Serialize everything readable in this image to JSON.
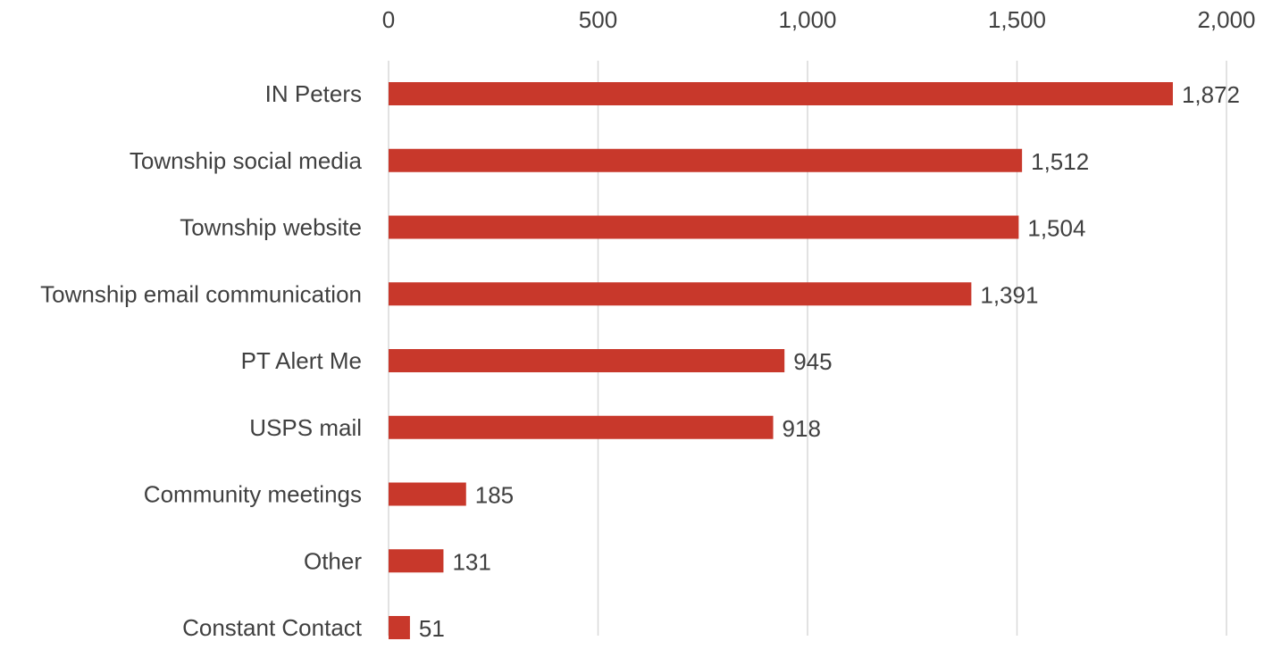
{
  "chart_data": {
    "type": "bar",
    "orientation": "horizontal",
    "categories": [
      "IN Peters",
      "Township social media",
      "Township website",
      "Township email communication",
      "PT Alert Me",
      "USPS mail",
      "Community meetings",
      "Other",
      "Constant Contact"
    ],
    "values": [
      1872,
      1512,
      1504,
      1391,
      945,
      918,
      185,
      131,
      51
    ],
    "value_labels": [
      "1,872",
      "1,512",
      "1,504",
      "1,391",
      "945",
      "918",
      "185",
      "131",
      "51"
    ],
    "xlim": [
      0,
      2000
    ],
    "x_ticks": [
      0,
      500,
      1000,
      1500,
      2000
    ],
    "x_tick_labels": [
      "0",
      "500",
      "1,000",
      "1,500",
      "2,000"
    ],
    "x_axis_position": "top",
    "gridlines": "vertical",
    "title": "",
    "xlabel": "",
    "ylabel": "",
    "bar_color": "#C8382B",
    "grid_color": "#D9D9D9",
    "text_color": "#404040"
  }
}
